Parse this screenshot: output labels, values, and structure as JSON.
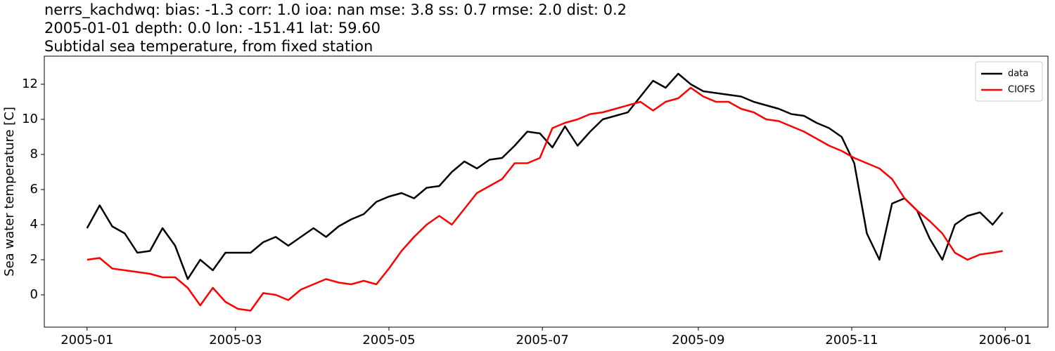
{
  "chart_data": {
    "type": "line",
    "title_lines": [
      "nerrs_kachdwq: bias: -1.3  corr: 1.0  ioa: nan  mse: 3.8  ss: 0.7  rmse: 2.0  dist: 0.2",
      "2005-01-01 depth: 0.0 lon: -151.41 lat: 59.60",
      "Subtidal sea temperature, from fixed station"
    ],
    "ylabel": "Sea water temperature [C]",
    "x": [
      0,
      5,
      10,
      15,
      20,
      25,
      30,
      35,
      40,
      45,
      50,
      55,
      60,
      65,
      70,
      75,
      80,
      85,
      90,
      95,
      100,
      105,
      110,
      115,
      120,
      125,
      130,
      135,
      140,
      145,
      150,
      155,
      160,
      165,
      170,
      175,
      180,
      185,
      190,
      195,
      200,
      205,
      210,
      215,
      220,
      225,
      230,
      235,
      240,
      245,
      250,
      255,
      260,
      265,
      270,
      275,
      280,
      285,
      290,
      295,
      300,
      305,
      310,
      315,
      320,
      325,
      330,
      335,
      340,
      345,
      350,
      355,
      360,
      364
    ],
    "series": [
      {
        "name": "data",
        "color": "#000000",
        "values": [
          3.8,
          5.1,
          3.9,
          3.5,
          2.4,
          2.5,
          3.8,
          2.8,
          0.9,
          2.0,
          1.4,
          2.4,
          2.4,
          2.4,
          3.0,
          3.3,
          2.8,
          3.3,
          3.8,
          3.3,
          3.9,
          4.3,
          4.6,
          5.3,
          5.6,
          5.8,
          5.5,
          6.1,
          6.2,
          7.0,
          7.6,
          7.2,
          7.7,
          7.8,
          8.5,
          9.3,
          9.2,
          8.4,
          9.6,
          8.5,
          9.3,
          10.0,
          10.2,
          10.4,
          11.3,
          12.2,
          11.8,
          12.6,
          12.0,
          11.6,
          11.5,
          11.4,
          11.3,
          11.0,
          10.8,
          10.6,
          10.3,
          10.2,
          9.8,
          9.5,
          9.0,
          7.5,
          3.5,
          2.0,
          5.2,
          5.5,
          4.8,
          3.2,
          2.0,
          4.0,
          4.5,
          4.7,
          4.0,
          4.7
        ]
      },
      {
        "name": "CIOFS",
        "color": "#ff0000",
        "values": [
          2.0,
          2.1,
          1.5,
          1.4,
          1.3,
          1.2,
          1.0,
          1.0,
          0.4,
          -0.6,
          0.4,
          -0.4,
          -0.8,
          -0.9,
          0.1,
          0.0,
          -0.3,
          0.3,
          0.6,
          0.9,
          0.7,
          0.6,
          0.8,
          0.6,
          1.5,
          2.5,
          3.3,
          4.0,
          4.5,
          4.0,
          4.9,
          5.8,
          6.2,
          6.6,
          7.5,
          7.5,
          7.8,
          9.5,
          9.8,
          10.0,
          10.3,
          10.4,
          10.6,
          10.8,
          11.0,
          10.5,
          11.0,
          11.2,
          11.8,
          11.3,
          11.0,
          11.0,
          10.6,
          10.4,
          10.0,
          9.9,
          9.6,
          9.3,
          8.9,
          8.5,
          8.2,
          7.8,
          7.5,
          7.2,
          6.6,
          5.5,
          4.8,
          4.2,
          3.5,
          2.4,
          2.0,
          2.3,
          2.4,
          2.5
        ]
      }
    ],
    "xlim": [
      -17,
      382
    ],
    "xticks": [
      {
        "value": 0,
        "label": "2005-01"
      },
      {
        "value": 59,
        "label": "2005-03"
      },
      {
        "value": 120,
        "label": "2005-05"
      },
      {
        "value": 181,
        "label": "2005-07"
      },
      {
        "value": 243,
        "label": "2005-09"
      },
      {
        "value": 304,
        "label": "2005-11"
      },
      {
        "value": 365,
        "label": "2006-01"
      }
    ],
    "ylim": [
      -1.84,
      13.6
    ],
    "yticks": [
      0,
      2,
      4,
      6,
      8,
      10,
      12
    ],
    "legend": "upper right"
  }
}
